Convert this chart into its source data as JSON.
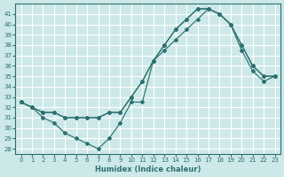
{
  "xlabel": "Humidex (Indice chaleur)",
  "bg_color": "#cde8e8",
  "line_color": "#2d7070",
  "grid_color": "#ffffff",
  "xlim": [
    -0.5,
    23.5
  ],
  "ylim": [
    27.5,
    42.0
  ],
  "xticks": [
    0,
    1,
    2,
    3,
    4,
    5,
    6,
    7,
    8,
    9,
    10,
    11,
    12,
    13,
    14,
    15,
    16,
    17,
    18,
    19,
    20,
    21,
    22,
    23
  ],
  "yticks": [
    28,
    29,
    30,
    31,
    32,
    33,
    34,
    35,
    36,
    37,
    38,
    39,
    40,
    41
  ],
  "line1_x": [
    0,
    1,
    2,
    3,
    4,
    5,
    6,
    7,
    8,
    9,
    10,
    11,
    12,
    13,
    14,
    15,
    16,
    17,
    18,
    19,
    20,
    21,
    22,
    23
  ],
  "line1_y": [
    32.5,
    32.0,
    31.5,
    31.5,
    31.0,
    31.0,
    31.0,
    31.0,
    31.5,
    31.5,
    33.0,
    34.5,
    36.5,
    38.0,
    39.5,
    40.5,
    41.5,
    41.5,
    41.0,
    40.0,
    38.0,
    36.0,
    35.0,
    35.0
  ],
  "line2_x": [
    0,
    1,
    2,
    3,
    4,
    5,
    6,
    7,
    8,
    9,
    10,
    11,
    12,
    13,
    14,
    15,
    16,
    17,
    18,
    19,
    20,
    21,
    22,
    23
  ],
  "line2_y": [
    32.5,
    32.0,
    31.0,
    30.5,
    29.5,
    29.0,
    28.5,
    28.0,
    29.0,
    30.5,
    32.5,
    32.5,
    36.5,
    37.5,
    38.5,
    39.5,
    40.5,
    41.5,
    41.0,
    40.0,
    37.5,
    35.5,
    34.5,
    35.0
  ],
  "line3_x": [
    0,
    1,
    2,
    3,
    4,
    5,
    6,
    7,
    8,
    9,
    10,
    11,
    12,
    13,
    14,
    15,
    16,
    17,
    18,
    19,
    20,
    21,
    22,
    23
  ],
  "line3_y": [
    32.5,
    32.0,
    31.5,
    31.5,
    31.0,
    31.0,
    31.0,
    31.0,
    31.5,
    31.5,
    33.0,
    34.5,
    36.5,
    38.0,
    39.5,
    40.5,
    41.5,
    41.5,
    41.0,
    40.0,
    38.0,
    36.0,
    35.0,
    35.0
  ]
}
